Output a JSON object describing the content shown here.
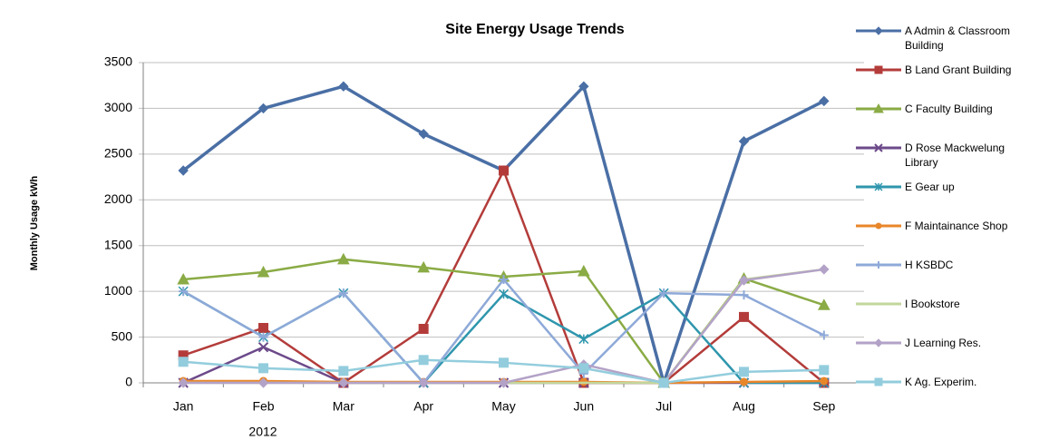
{
  "chart_data": {
    "type": "line",
    "title": "Site Energy Usage Trends",
    "ylabel": "Monthly Usage kWh",
    "xlabel": "2012",
    "categories": [
      "Jan",
      "Feb",
      "Mar",
      "Apr",
      "May",
      "Jun",
      "Jul",
      "Aug",
      "Sep"
    ],
    "ylim": [
      0,
      3500
    ],
    "yticks": [
      0,
      500,
      1000,
      1500,
      2000,
      2500,
      3000,
      3500
    ],
    "grid": true,
    "legend": "right",
    "series": [
      {
        "name": "A Admin & Classroom Building",
        "color": "#4a6fa5",
        "marker": "diamond",
        "values": [
          2320,
          3000,
          3240,
          2720,
          2320,
          3240,
          0,
          2640,
          3080
        ]
      },
      {
        "name": "B Land Grant Building",
        "color": "#b33c3a",
        "marker": "square",
        "values": [
          300,
          600,
          0,
          590,
          2320,
          0,
          0,
          720,
          0
        ]
      },
      {
        "name": "C Faculty Building",
        "color": "#8aab45",
        "marker": "triangle",
        "values": [
          1130,
          1210,
          1350,
          1260,
          1160,
          1220,
          0,
          1140,
          850
        ]
      },
      {
        "name": "D Rose Mackwelung Library",
        "color": "#6c4a8a",
        "marker": "x",
        "values": [
          0,
          390,
          0,
          0,
          0,
          0,
          0,
          0,
          0
        ]
      },
      {
        "name": "E Gear up",
        "color": "#2f96ad",
        "marker": "star",
        "values": [
          1000,
          500,
          980,
          0,
          970,
          480,
          980,
          0,
          0
        ]
      },
      {
        "name": "F Maintainance Shop",
        "color": "#e8862a",
        "marker": "circle",
        "values": [
          20,
          20,
          10,
          10,
          10,
          10,
          0,
          10,
          20
        ]
      },
      {
        "name": "H KSBDC",
        "color": "#8ea9d8",
        "marker": "plus",
        "values": [
          1000,
          500,
          980,
          0,
          1130,
          100,
          980,
          960,
          520
        ]
      },
      {
        "name": "I Bookstore",
        "color": "#c3d69b",
        "marker": "none",
        "values": [
          0,
          0,
          0,
          0,
          0,
          0,
          0,
          1130,
          1240
        ]
      },
      {
        "name": "J Learning Res.",
        "color": "#b3a2c7",
        "marker": "diamond",
        "values": [
          0,
          0,
          0,
          0,
          0,
          200,
          0,
          1120,
          1240
        ]
      },
      {
        "name": "K Ag. Experim.",
        "color": "#93cddd",
        "marker": "square",
        "values": [
          230,
          160,
          130,
          250,
          220,
          160,
          0,
          120,
          140
        ]
      }
    ]
  }
}
